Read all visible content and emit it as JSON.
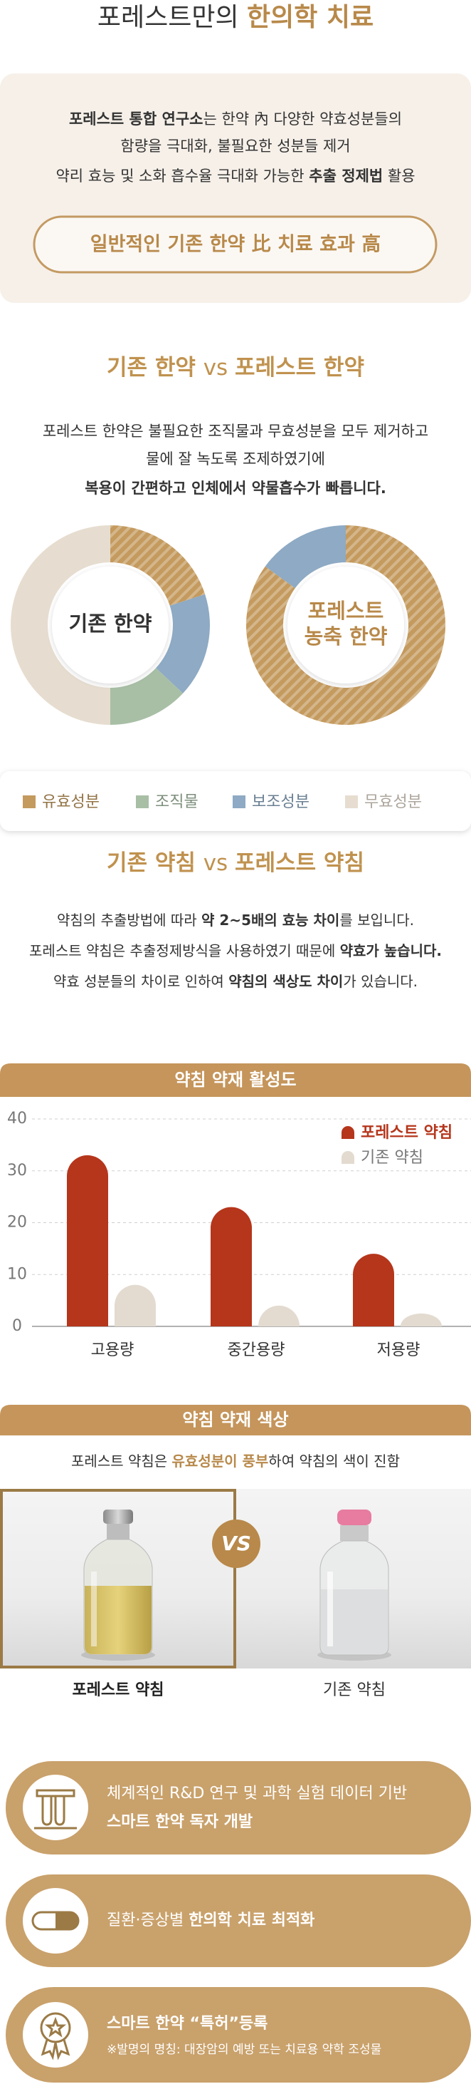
{
  "header": {
    "title": [
      {
        "text": "포레스트만의 "
      },
      {
        "text": "한의학 치료",
        "bold": true,
        "accent": true
      }
    ]
  },
  "intro": {
    "lines": [
      [
        {
          "text": "포레스트 통합 연구소",
          "bold": true
        },
        {
          "text": "는 한약 內 다양한 약효성분들의"
        }
      ],
      [
        {
          "text": "함량을 극대화, 불필요한 성분들 제거"
        }
      ],
      [
        {
          "text": "약리 효능 및 소화 흡수율 극대화 가능한 "
        },
        {
          "text": "추출 정제법",
          "bold": true
        },
        {
          "text": " 활용"
        }
      ]
    ],
    "button": "일반적인 기존 한약 比 치료 효과 高"
  },
  "section1": {
    "heading": [
      {
        "text": "기존 한약 ",
        "bold": true
      },
      {
        "text": "vs "
      },
      {
        "text": "포레스트 한약",
        "bold": true
      }
    ],
    "lines": [
      [
        {
          "text": "포레스트 한약은 불필요한 조직물과 무효성분을 모두 제거하고"
        }
      ],
      [
        {
          "text": "물에 잘 녹도록 조제하였기에"
        }
      ],
      [
        {
          "text": "복용이 간편하고 인체에서 약물흡수가 빠릅니다.",
          "bold": true
        }
      ]
    ]
  },
  "section2": {
    "heading": [
      {
        "text": "기존 약침 ",
        "bold": true
      },
      {
        "text": "vs "
      },
      {
        "text": "포레스트 약침",
        "bold": true
      }
    ],
    "lines": [
      [
        {
          "text": "약침의 추출방법에 따라 "
        },
        {
          "text": "약 2~5배의 효능 차이",
          "bold": true
        },
        {
          "text": "를 보입니다."
        }
      ],
      [
        {
          "text": "포레스트 약침은 추출정제방식을 사용하였기 때문에 "
        },
        {
          "text": "약효가 높습니다.",
          "bold": true
        }
      ],
      [
        {
          "text": "약효 성분들의 차이로 인하여 "
        },
        {
          "text": "약침의 색상도 차이",
          "bold": true
        },
        {
          "text": "가 있습니다."
        }
      ]
    ]
  },
  "section3": {
    "heading": "약침 약재 색상",
    "line": [
      {
        "text": "포레스트 약침은 "
      },
      {
        "text": "유효성분이 풍부",
        "bold": true,
        "accent": true
      },
      {
        "text": "하여 약침의 색이 진함"
      }
    ],
    "vs": "VS",
    "labels": [
      "포레스트 약침",
      "기존 약침"
    ]
  },
  "features": [
    {
      "lines": [
        [
          {
            "text": "체계적인 R&D 연구 및 과학 실험 데이터 기반"
          }
        ],
        [
          {
            "text": "스마트 한약 독자 개발",
            "bold": true
          }
        ]
      ]
    },
    {
      "lines": [
        [
          {
            "text": "질환·증상별 "
          },
          {
            "text": "한의학 치료 최적화",
            "bold": true
          }
        ]
      ]
    },
    {
      "lines": [
        [
          {
            "text": "스마트 한약 “특허”등록",
            "bold": true
          }
        ],
        [
          {
            "text": "※발명의 명칭: 대장암의 예방 또는 치료용 약학 조성물",
            "small": true
          }
        ]
      ]
    }
  ],
  "chart_data": [
    {
      "type": "pie",
      "title": [
        "기존 한약"
      ],
      "title_color": "#333333",
      "categories": [
        "유효성분",
        "조직물",
        "보조성분",
        "무효성분"
      ],
      "values": [
        20,
        13,
        17,
        50
      ],
      "colors": [
        "#c49a5e",
        "#a8bfa6",
        "#8eaac4",
        "#e6ddd0"
      ],
      "hatch": [
        true,
        false,
        false,
        false
      ]
    },
    {
      "type": "pie",
      "title": [
        "포레스트",
        "농축 한약"
      ],
      "title_color": "#b8894a",
      "categories": [
        "유효성분",
        "조직물",
        "보조성분",
        "무효성분"
      ],
      "values": [
        85,
        0,
        15,
        0
      ],
      "colors": [
        "#c49a5e",
        "#a8bfa6",
        "#8eaac4",
        "#e6ddd0"
      ],
      "hatch": [
        true,
        false,
        false,
        false
      ]
    },
    {
      "type": "bar",
      "title": "약침 약재 활성도",
      "categories": [
        "고용량",
        "중간용량",
        "저용량"
      ],
      "series": [
        {
          "name": "포레스트 약침",
          "color": "#b5361b",
          "values": [
            33,
            23,
            14
          ]
        },
        {
          "name": "기존 약침",
          "color": "#e3dbd0",
          "values": [
            8,
            4,
            2.5
          ]
        }
      ],
      "ylim": [
        0,
        40
      ],
      "yticks": [
        0,
        10,
        20,
        30,
        40
      ],
      "grid": true,
      "legend": "top-right"
    }
  ]
}
